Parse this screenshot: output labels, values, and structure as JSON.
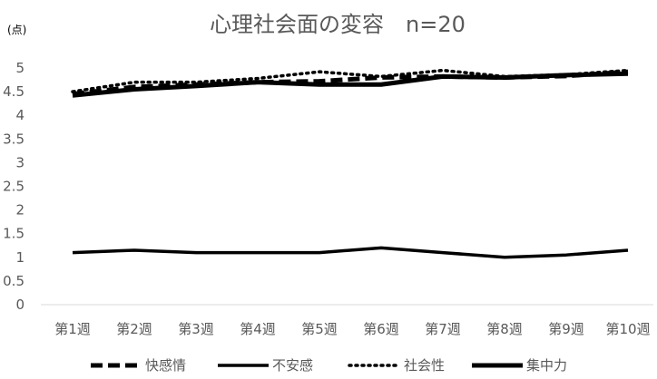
{
  "chart_data": {
    "type": "line",
    "title": "心理社会面の変容　n=20",
    "unit_label": "(点)",
    "ylim": [
      0,
      5
    ],
    "yticks": [
      "0",
      "0.5",
      "1",
      "1.5",
      "2",
      "2.5",
      "3",
      "3.5",
      "4",
      "4.5",
      "5"
    ],
    "categories": [
      "第1週",
      "第2週",
      "第3週",
      "第4週",
      "第5週",
      "第6週",
      "第7週",
      "第8週",
      "第9週",
      "第10週"
    ],
    "grid": false,
    "legend_position": "bottom",
    "series": [
      {
        "name": "快感情",
        "style": "dashed",
        "color": "#000000",
        "values": [
          4.45,
          4.6,
          4.65,
          4.7,
          4.72,
          4.8,
          4.82,
          4.8,
          4.83,
          4.92
        ]
      },
      {
        "name": "不安感",
        "style": "solid",
        "color": "#000000",
        "values": [
          1.1,
          1.15,
          1.1,
          1.1,
          1.1,
          1.2,
          1.1,
          1.0,
          1.05,
          1.15
        ]
      },
      {
        "name": "社会性",
        "style": "dotted",
        "color": "#000000",
        "values": [
          4.5,
          4.7,
          4.7,
          4.78,
          4.92,
          4.82,
          4.95,
          4.82,
          4.86,
          4.95
        ]
      },
      {
        "name": "集中力",
        "style": "solid-thick",
        "color": "#000000",
        "values": [
          4.42,
          4.55,
          4.62,
          4.7,
          4.65,
          4.65,
          4.82,
          4.8,
          4.85,
          4.88
        ]
      }
    ]
  }
}
